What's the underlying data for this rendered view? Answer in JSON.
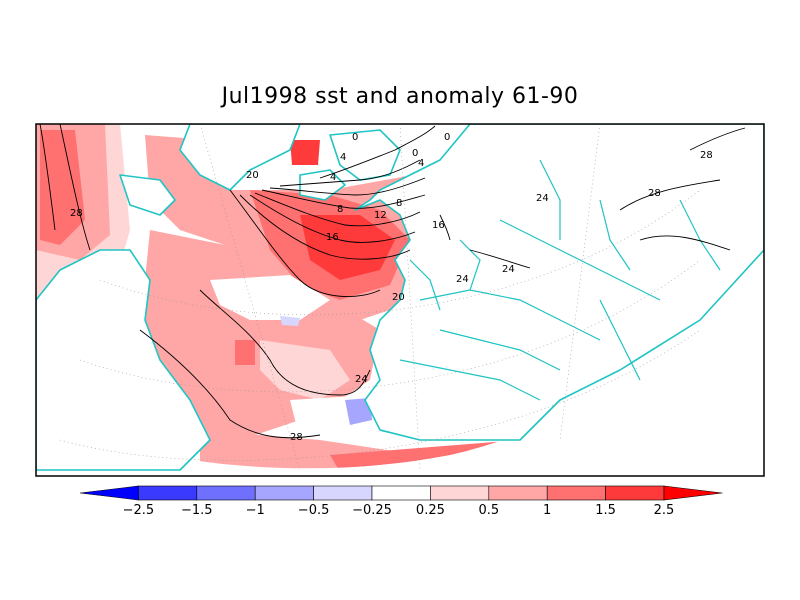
{
  "title": "Jul1998 sst and anomaly 61-90",
  "colorbar": {
    "ticks": [
      "−2.5",
      "−1.5",
      "−1",
      "−0.5",
      "−0.25",
      "0.25",
      "0.5",
      "1",
      "1.5",
      "2.5"
    ],
    "colors": [
      "#0000ff",
      "#3a3aff",
      "#7070ff",
      "#a6a6ff",
      "#d6d6ff",
      "#ffffff",
      "#ffd6d6",
      "#ffa6a6",
      "#ff7070",
      "#ff3a3a",
      "#ff0000"
    ]
  },
  "contour_labels": [
    {
      "text": "28"
    },
    {
      "text": "28"
    },
    {
      "text": "28"
    },
    {
      "text": "28"
    },
    {
      "text": "24"
    },
    {
      "text": "24"
    },
    {
      "text": "24"
    },
    {
      "text": "20"
    },
    {
      "text": "20"
    },
    {
      "text": "16"
    },
    {
      "text": "12"
    },
    {
      "text": "8"
    },
    {
      "text": "8"
    },
    {
      "text": "4"
    },
    {
      "text": "4"
    },
    {
      "text": "0"
    },
    {
      "text": "0"
    },
    {
      "text": "0"
    },
    {
      "text": "16"
    },
    {
      "text": "4"
    },
    {
      "text": "24"
    }
  ],
  "colors": {
    "coast": "#1fc4c4",
    "frame": "#000000",
    "light_red": "#ffd6d6",
    "mid_red": "#ffa6a6",
    "red": "#ff7070",
    "strong_red": "#ff3a3a",
    "light_blue": "#d6d6ff",
    "mid_blue": "#a6a6ff"
  }
}
